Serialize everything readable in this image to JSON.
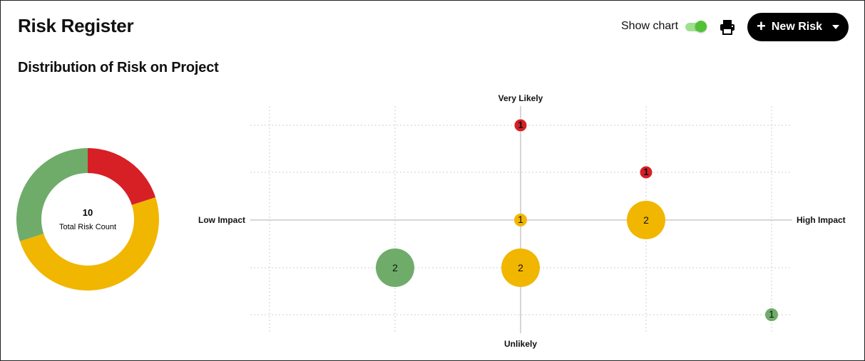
{
  "header": {
    "title": "Risk Register",
    "show_chart_label": "Show chart",
    "show_chart_on": true,
    "print_icon": "printer-icon",
    "new_risk_label": "New Risk"
  },
  "section": {
    "title": "Distribution of Risk on Project"
  },
  "colors": {
    "high": "#d71f26",
    "medium": "#f1b600",
    "low": "#6fac6a",
    "toggle_on": "#52c235"
  },
  "donut": {
    "total": "10",
    "caption": "Total Risk Count",
    "segments": [
      {
        "level": "high",
        "count": 2,
        "color": "#d71f26"
      },
      {
        "level": "medium",
        "count": 5,
        "color": "#f1b600"
      },
      {
        "level": "low",
        "count": 3,
        "color": "#6fac6a"
      }
    ]
  },
  "chart_data": {
    "type": "scatter",
    "axes": {
      "x_min_label": "Low Impact",
      "x_max_label": "High Impact",
      "y_max_label": "Very Likely",
      "y_min_label": "Unlikely"
    },
    "xlim": [
      1,
      5
    ],
    "ylim": [
      1,
      5
    ],
    "grid": true,
    "points": [
      {
        "x": 3,
        "y": 5,
        "count": 1,
        "level": "high",
        "color": "#d71f26"
      },
      {
        "x": 4,
        "y": 4,
        "count": 1,
        "level": "high",
        "color": "#d71f26"
      },
      {
        "x": 3,
        "y": 3,
        "count": 1,
        "level": "medium",
        "color": "#f1b600"
      },
      {
        "x": 4,
        "y": 3,
        "count": 2,
        "level": "medium",
        "color": "#f1b600"
      },
      {
        "x": 2,
        "y": 2,
        "count": 2,
        "level": "low",
        "color": "#6fac6a"
      },
      {
        "x": 3,
        "y": 2,
        "count": 2,
        "level": "medium",
        "color": "#f1b600"
      },
      {
        "x": 5,
        "y": 1,
        "count": 1,
        "level": "low",
        "color": "#6fac6a"
      }
    ]
  }
}
